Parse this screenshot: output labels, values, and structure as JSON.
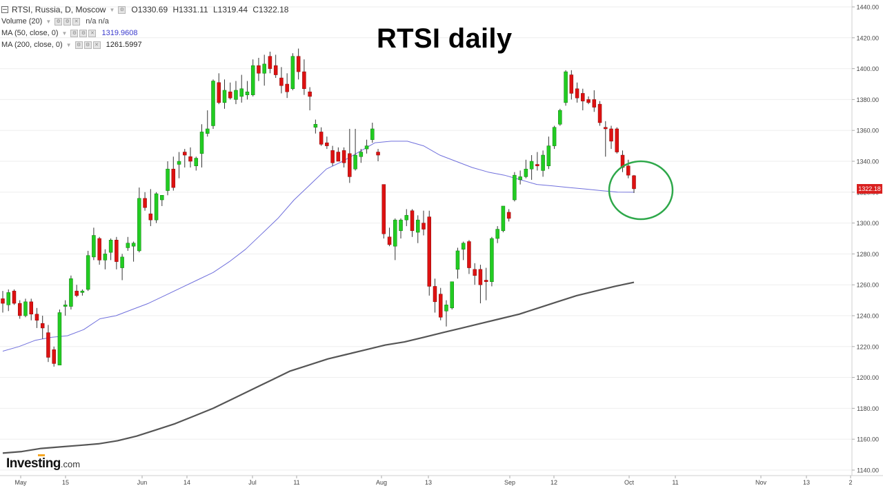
{
  "legend": {
    "instrument": "RTSI, Russia, D, Moscow",
    "open": "O1330.69",
    "high": "H1331.11",
    "low": "L1319.44",
    "close": "C1322.18",
    "volume_label": "Volume (20)",
    "volume_values": "n/a  n/a",
    "ma50_label": "MA (50, close, 0)",
    "ma50_value": "1319.9608",
    "ma200_label": "MA (200, close, 0)",
    "ma200_value": "1261.5997"
  },
  "title": "RTSI daily",
  "logo": {
    "text": "Investing",
    "suffix": ".com"
  },
  "last_price_label": "1322.18",
  "chart_data": {
    "type": "candlestick",
    "title": "RTSI daily",
    "y_axis": {
      "position": "right",
      "ticks": [
        1140,
        1160,
        1180,
        1200,
        1220,
        1240,
        1260,
        1280,
        1300,
        1320,
        1340,
        1360,
        1380,
        1400,
        1420,
        1440
      ],
      "tick_format": "2dp"
    },
    "x_axis": {
      "labels": [
        "May",
        "15",
        "Jun",
        "14",
        "Jul",
        "11",
        "Aug",
        "13",
        "Sep",
        "12",
        "Oct",
        "11",
        "Nov",
        "13",
        "2"
      ]
    },
    "colors": {
      "up": "#22cc22",
      "down": "#dd1111",
      "ma50": "#6f6fdc",
      "ma200": "#555555",
      "annotation": "#2ea84a",
      "last_price": "#d9201f"
    },
    "candles": [
      {
        "o": 1251,
        "h": 1256,
        "l": 1242,
        "c": 1248
      },
      {
        "o": 1247,
        "h": 1257,
        "l": 1243,
        "c": 1255
      },
      {
        "o": 1256,
        "h": 1257,
        "l": 1247,
        "c": 1248
      },
      {
        "o": 1248,
        "h": 1250,
        "l": 1238,
        "c": 1240
      },
      {
        "o": 1240,
        "h": 1251,
        "l": 1239,
        "c": 1249
      },
      {
        "o": 1249,
        "h": 1251,
        "l": 1237,
        "c": 1241
      },
      {
        "o": 1241,
        "h": 1245,
        "l": 1232,
        "c": 1237
      },
      {
        "o": 1235,
        "h": 1240,
        "l": 1225,
        "c": 1232
      },
      {
        "o": 1229,
        "h": 1234,
        "l": 1210,
        "c": 1213
      },
      {
        "o": 1218,
        "h": 1220,
        "l": 1207,
        "c": 1209
      },
      {
        "o": 1208,
        "h": 1244,
        "l": 1208,
        "c": 1242
      },
      {
        "o": 1246,
        "h": 1250,
        "l": 1240,
        "c": 1247
      },
      {
        "o": 1246,
        "h": 1266,
        "l": 1244,
        "c": 1264
      },
      {
        "o": 1256,
        "h": 1260,
        "l": 1252,
        "c": 1253
      },
      {
        "o": 1255,
        "h": 1257,
        "l": 1253,
        "c": 1256
      },
      {
        "o": 1257,
        "h": 1282,
        "l": 1256,
        "c": 1279
      },
      {
        "o": 1278,
        "h": 1297,
        "l": 1276,
        "c": 1292
      },
      {
        "o": 1290,
        "h": 1291,
        "l": 1273,
        "c": 1276
      },
      {
        "o": 1276,
        "h": 1283,
        "l": 1270,
        "c": 1280
      },
      {
        "o": 1281,
        "h": 1290,
        "l": 1276,
        "c": 1289
      },
      {
        "o": 1289,
        "h": 1291,
        "l": 1270,
        "c": 1275
      },
      {
        "o": 1271,
        "h": 1280,
        "l": 1263,
        "c": 1278
      },
      {
        "o": 1284,
        "h": 1291,
        "l": 1282,
        "c": 1287
      },
      {
        "o": 1285,
        "h": 1288,
        "l": 1275,
        "c": 1287
      },
      {
        "o": 1282,
        "h": 1323,
        "l": 1281,
        "c": 1316
      },
      {
        "o": 1316,
        "h": 1320,
        "l": 1308,
        "c": 1310
      },
      {
        "o": 1306,
        "h": 1322,
        "l": 1298,
        "c": 1302
      },
      {
        "o": 1302,
        "h": 1320,
        "l": 1300,
        "c": 1319
      },
      {
        "o": 1315,
        "h": 1318,
        "l": 1311,
        "c": 1318
      },
      {
        "o": 1321,
        "h": 1340,
        "l": 1318,
        "c": 1335
      },
      {
        "o": 1335,
        "h": 1343,
        "l": 1321,
        "c": 1323
      },
      {
        "o": 1338,
        "h": 1346,
        "l": 1329,
        "c": 1340
      },
      {
        "o": 1346,
        "h": 1348,
        "l": 1336,
        "c": 1344
      },
      {
        "o": 1343,
        "h": 1349,
        "l": 1336,
        "c": 1340
      },
      {
        "o": 1337,
        "h": 1343,
        "l": 1334,
        "c": 1342
      },
      {
        "o": 1345,
        "h": 1364,
        "l": 1336,
        "c": 1359
      },
      {
        "o": 1358,
        "h": 1373,
        "l": 1356,
        "c": 1361
      },
      {
        "o": 1363,
        "h": 1393,
        "l": 1361,
        "c": 1392
      },
      {
        "o": 1391,
        "h": 1397,
        "l": 1377,
        "c": 1378
      },
      {
        "o": 1378,
        "h": 1393,
        "l": 1374,
        "c": 1386
      },
      {
        "o": 1385,
        "h": 1391,
        "l": 1380,
        "c": 1381
      },
      {
        "o": 1380,
        "h": 1392,
        "l": 1377,
        "c": 1386
      },
      {
        "o": 1382,
        "h": 1396,
        "l": 1378,
        "c": 1387
      },
      {
        "o": 1383,
        "h": 1392,
        "l": 1380,
        "c": 1385
      },
      {
        "o": 1383,
        "h": 1406,
        "l": 1382,
        "c": 1402
      },
      {
        "o": 1402,
        "h": 1407,
        "l": 1392,
        "c": 1397
      },
      {
        "o": 1397,
        "h": 1409,
        "l": 1389,
        "c": 1403
      },
      {
        "o": 1408,
        "h": 1411,
        "l": 1397,
        "c": 1400
      },
      {
        "o": 1402,
        "h": 1409,
        "l": 1394,
        "c": 1396
      },
      {
        "o": 1394,
        "h": 1401,
        "l": 1384,
        "c": 1389
      },
      {
        "o": 1390,
        "h": 1397,
        "l": 1381,
        "c": 1385
      },
      {
        "o": 1387,
        "h": 1410,
        "l": 1386,
        "c": 1408
      },
      {
        "o": 1408,
        "h": 1413,
        "l": 1393,
        "c": 1398
      },
      {
        "o": 1398,
        "h": 1406,
        "l": 1383,
        "c": 1387
      },
      {
        "o": 1385,
        "h": 1388,
        "l": 1373,
        "c": 1382
      },
      {
        "o": 1362,
        "h": 1367,
        "l": 1358,
        "c": 1364
      },
      {
        "o": 1359,
        "h": 1362,
        "l": 1350,
        "c": 1351
      },
      {
        "o": 1352,
        "h": 1356,
        "l": 1348,
        "c": 1350
      },
      {
        "o": 1347,
        "h": 1350,
        "l": 1337,
        "c": 1339
      },
      {
        "o": 1346,
        "h": 1349,
        "l": 1340,
        "c": 1340
      },
      {
        "o": 1347,
        "h": 1349,
        "l": 1336,
        "c": 1339
      },
      {
        "o": 1345,
        "h": 1361,
        "l": 1326,
        "c": 1330
      },
      {
        "o": 1335,
        "h": 1361,
        "l": 1334,
        "c": 1344
      },
      {
        "o": 1343,
        "h": 1348,
        "l": 1339,
        "c": 1346
      },
      {
        "o": 1348,
        "h": 1354,
        "l": 1345,
        "c": 1350
      },
      {
        "o": 1354,
        "h": 1365,
        "l": 1352,
        "c": 1361
      },
      {
        "o": 1346,
        "h": 1348,
        "l": 1340,
        "c": 1344
      },
      {
        "o": 1325,
        "h": 1325,
        "l": 1290,
        "c": 1293
      },
      {
        "o": 1291,
        "h": 1297,
        "l": 1285,
        "c": 1286
      },
      {
        "o": 1285,
        "h": 1303,
        "l": 1276,
        "c": 1302
      },
      {
        "o": 1295,
        "h": 1303,
        "l": 1290,
        "c": 1302
      },
      {
        "o": 1302,
        "h": 1309,
        "l": 1298,
        "c": 1305
      },
      {
        "o": 1308,
        "h": 1309,
        "l": 1291,
        "c": 1295
      },
      {
        "o": 1294,
        "h": 1305,
        "l": 1287,
        "c": 1302
      },
      {
        "o": 1300,
        "h": 1308,
        "l": 1292,
        "c": 1296
      },
      {
        "o": 1304,
        "h": 1308,
        "l": 1253,
        "c": 1259
      },
      {
        "o": 1259,
        "h": 1264,
        "l": 1242,
        "c": 1249
      },
      {
        "o": 1254,
        "h": 1258,
        "l": 1237,
        "c": 1239
      },
      {
        "o": 1243,
        "h": 1250,
        "l": 1233,
        "c": 1247
      },
      {
        "o": 1245,
        "h": 1262,
        "l": 1244,
        "c": 1262
      },
      {
        "o": 1270,
        "h": 1284,
        "l": 1264,
        "c": 1282
      },
      {
        "o": 1283,
        "h": 1288,
        "l": 1276,
        "c": 1287
      },
      {
        "o": 1288,
        "h": 1289,
        "l": 1267,
        "c": 1271
      },
      {
        "o": 1270,
        "h": 1274,
        "l": 1260,
        "c": 1266
      },
      {
        "o": 1270,
        "h": 1273,
        "l": 1248,
        "c": 1260
      },
      {
        "o": 1263,
        "h": 1271,
        "l": 1250,
        "c": 1262
      },
      {
        "o": 1262,
        "h": 1291,
        "l": 1259,
        "c": 1290
      },
      {
        "o": 1290,
        "h": 1298,
        "l": 1287,
        "c": 1296
      },
      {
        "o": 1295,
        "h": 1311,
        "l": 1294,
        "c": 1311
      },
      {
        "o": 1307,
        "h": 1309,
        "l": 1301,
        "c": 1303
      },
      {
        "o": 1315,
        "h": 1333,
        "l": 1314,
        "c": 1331
      },
      {
        "o": 1328,
        "h": 1334,
        "l": 1325,
        "c": 1330
      },
      {
        "o": 1330,
        "h": 1341,
        "l": 1329,
        "c": 1335
      },
      {
        "o": 1335,
        "h": 1344,
        "l": 1328,
        "c": 1340
      },
      {
        "o": 1338,
        "h": 1346,
        "l": 1334,
        "c": 1337
      },
      {
        "o": 1334,
        "h": 1347,
        "l": 1330,
        "c": 1344
      },
      {
        "o": 1337,
        "h": 1356,
        "l": 1335,
        "c": 1350
      },
      {
        "o": 1350,
        "h": 1363,
        "l": 1348,
        "c": 1362
      },
      {
        "o": 1364,
        "h": 1374,
        "l": 1363,
        "c": 1373
      },
      {
        "o": 1378,
        "h": 1399,
        "l": 1376,
        "c": 1398
      },
      {
        "o": 1396,
        "h": 1399,
        "l": 1380,
        "c": 1384
      },
      {
        "o": 1387,
        "h": 1391,
        "l": 1378,
        "c": 1381
      },
      {
        "o": 1384,
        "h": 1387,
        "l": 1373,
        "c": 1379
      },
      {
        "o": 1380,
        "h": 1382,
        "l": 1377,
        "c": 1378
      },
      {
        "o": 1380,
        "h": 1386,
        "l": 1372,
        "c": 1375
      },
      {
        "o": 1377,
        "h": 1379,
        "l": 1363,
        "c": 1365
      },
      {
        "o": 1362,
        "h": 1366,
        "l": 1343,
        "c": 1361
      },
      {
        "o": 1361,
        "h": 1363,
        "l": 1348,
        "c": 1353
      },
      {
        "o": 1361,
        "h": 1362,
        "l": 1345,
        "c": 1346
      },
      {
        "o": 1344,
        "h": 1347,
        "l": 1333,
        "c": 1336
      },
      {
        "o": 1337,
        "h": 1341,
        "l": 1329,
        "c": 1331
      },
      {
        "o": 1330.69,
        "h": 1331.11,
        "l": 1319.44,
        "c": 1322.18
      }
    ],
    "ma50": [
      1217,
      1220,
      1224,
      1226,
      1227,
      1231,
      1238,
      1240,
      1244,
      1248,
      1253,
      1258,
      1263,
      1268,
      1275,
      1283,
      1293,
      1303,
      1315,
      1325,
      1335,
      1340,
      1346,
      1352,
      1353,
      1353,
      1350,
      1344,
      1340,
      1336,
      1333,
      1331,
      1328,
      1325,
      1324,
      1323,
      1322,
      1321,
      1320,
      1319.96
    ],
    "ma200": [
      1151,
      1152,
      1154,
      1155,
      1156,
      1157,
      1159,
      1162,
      1166,
      1170,
      1175,
      1180,
      1186,
      1192,
      1198,
      1204,
      1208,
      1212,
      1215,
      1218,
      1221,
      1223,
      1226,
      1229,
      1232,
      1235,
      1238,
      1241,
      1245,
      1249,
      1253,
      1256,
      1259,
      1261.6
    ]
  }
}
